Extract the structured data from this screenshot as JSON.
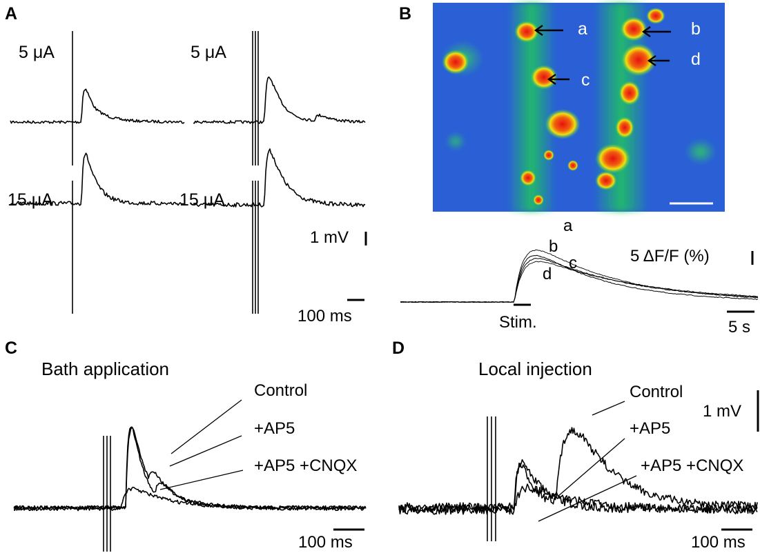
{
  "panels": {
    "a": "A",
    "b": "B",
    "c": "C",
    "d": "D"
  },
  "panel_a": {
    "labels": [
      "5 μA",
      "5 μA",
      "15 μA",
      "15 μA"
    ],
    "scale_v": "1 mV",
    "scale_t": "100 ms"
  },
  "panel_b": {
    "cell_labels": [
      "a",
      "b",
      "c",
      "d"
    ],
    "trace_labels": [
      "a",
      "b",
      "c",
      "d"
    ],
    "scale_y": "5 ΔF/F (%)",
    "stim": "Stim.",
    "scale_t": "5 s",
    "colors": {
      "background": "#2962d8",
      "low": "#1ec85a",
      "mid": "#f0e010",
      "high": "#e81010"
    }
  },
  "panel_c": {
    "title": "Bath application",
    "legend": [
      "Control",
      "+AP5",
      "+AP5 +CNQX"
    ],
    "scale_t": "100 ms"
  },
  "panel_d": {
    "title": "Local injection",
    "legend": [
      "Control",
      "+AP5",
      "+AP5 +CNQX"
    ],
    "scale_v": "1 mV",
    "scale_t": "100 ms"
  }
}
